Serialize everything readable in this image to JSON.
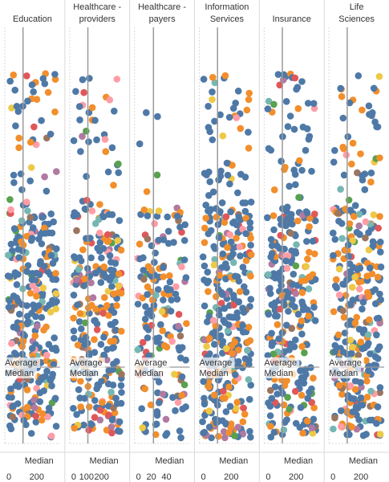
{
  "chart_data": {
    "type": "scatter",
    "panels": [
      {
        "name": "Education",
        "ticks": [
          "0",
          "200"
        ],
        "average_label": "Average",
        "median_label": "Median",
        "axis_median_label": "Median",
        "x_scale": 200,
        "median_x": 120,
        "average_x": 120
      },
      {
        "name": "Healthcare - providers",
        "ticks": [
          "0",
          "100",
          "200"
        ],
        "average_label": "Average",
        "median_label": "Median",
        "axis_median_label": "Median",
        "x_scale": 200,
        "median_x": 120,
        "average_x": 120
      },
      {
        "name": "Healthcare - payers",
        "ticks": [
          "0",
          "20",
          "40"
        ],
        "average_label": "Average",
        "median_label": "Median",
        "axis_median_label": "Median",
        "x_scale": 40,
        "median_x": 25,
        "average_x": 25
      },
      {
        "name": "Information Services",
        "ticks": [
          "0",
          "200"
        ],
        "average_label": "Average",
        "median_label": "Median",
        "axis_median_label": "Median",
        "x_scale": 200,
        "median_x": 120,
        "average_x": 120
      },
      {
        "name": "Insurance",
        "ticks": [
          "0",
          "200"
        ],
        "average_label": "Average",
        "median_label": "Median",
        "axis_median_label": "Median",
        "x_scale": 200,
        "median_x": 120,
        "average_x": 120
      },
      {
        "name": "Life Sciences",
        "ticks": [
          "0",
          "200"
        ],
        "average_label": "Average",
        "median_label": "Median",
        "axis_median_label": "Median",
        "x_scale": 200,
        "median_x": 120,
        "average_x": 120
      }
    ],
    "colors": {
      "primary": "#4e79a7",
      "secondary": "#f28e2b",
      "palette": [
        "#e15759",
        "#76b7b2",
        "#59a14f",
        "#edc948",
        "#b07aa1",
        "#ff9da7",
        "#9c755f"
      ],
      "reference_line": "#9a9a9a",
      "divider": "#d9d9d9"
    },
    "grid": false
  }
}
